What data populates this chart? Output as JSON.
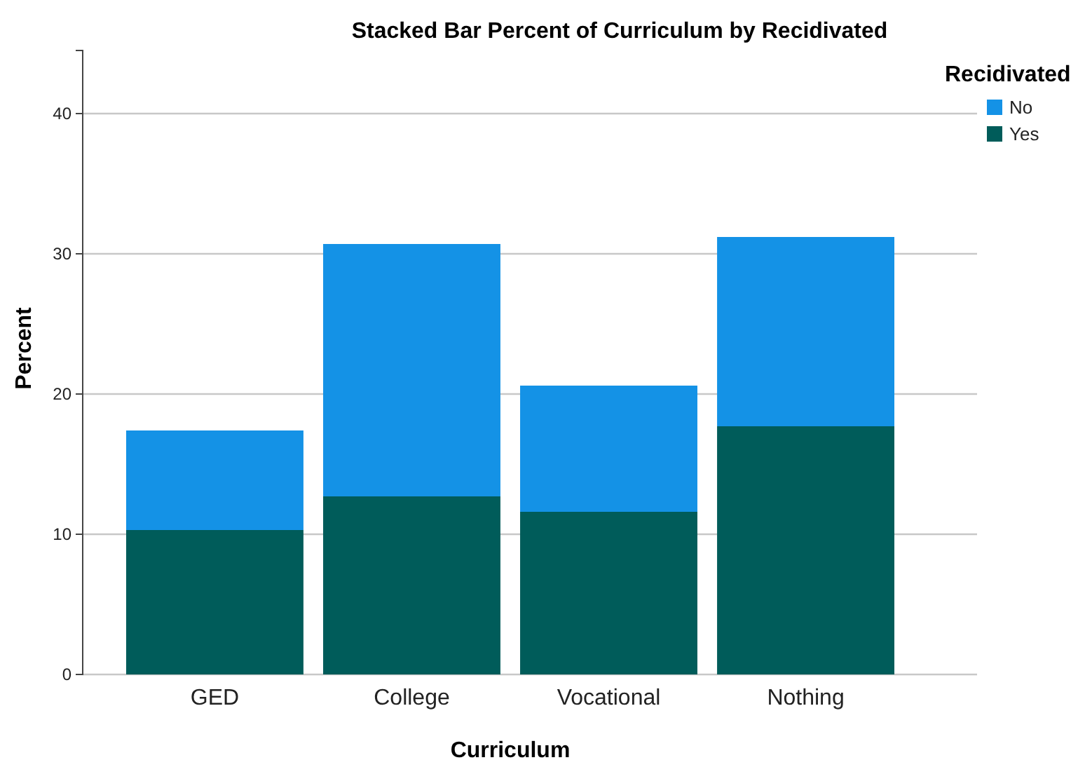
{
  "chart_data": {
    "type": "bar",
    "title": "Stacked Bar Percent of Curriculum by Recidivated",
    "xlabel": "Curriculum",
    "ylabel": "Percent",
    "legend_title": "Recidivated",
    "categories": [
      "GED",
      "College",
      "Vocational",
      "Nothing"
    ],
    "stacked": true,
    "series": [
      {
        "name": "Yes",
        "color": "#005c5a",
        "values": [
          10.3,
          12.7,
          11.6,
          17.7
        ]
      },
      {
        "name": "No",
        "color": "#1492e6",
        "values": [
          7.1,
          18.0,
          9.0,
          13.5
        ]
      }
    ],
    "ylim": [
      0,
      44.5
    ],
    "yticks": [
      0,
      10,
      20,
      30,
      40
    ],
    "grid": "y",
    "legend": "top right"
  }
}
